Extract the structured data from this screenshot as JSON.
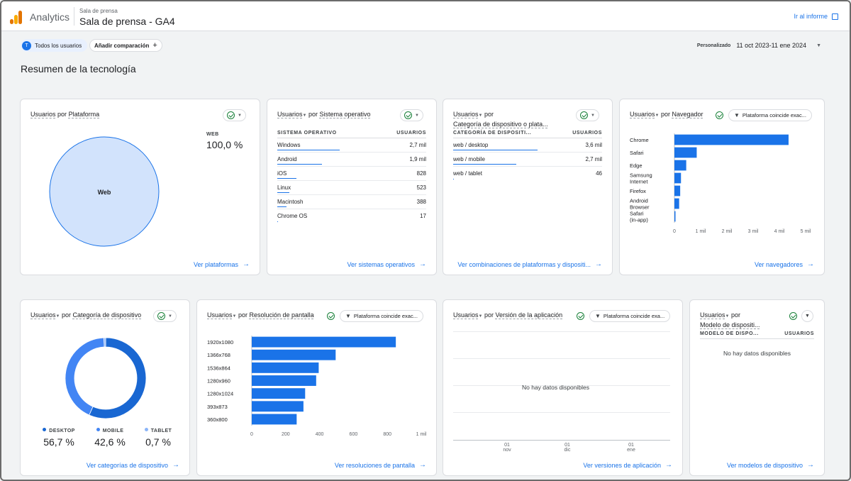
{
  "header": {
    "app_name": "Analytics",
    "property_small": "Sala de prensa",
    "property_name": "Sala de prensa - GA4",
    "go_report": "Ir al informe"
  },
  "filters": {
    "segment_avatar": "T",
    "segment_label": "Todos los usuarios",
    "compare_label": "Añadir comparación",
    "date_prefix": "Personalizado",
    "date_range": "11 oct 2023-11 ene 2024"
  },
  "page_title": "Resumen de la tecnología",
  "colors": {
    "accent": "#1a73e8",
    "pie_fill": "#d2e3fc",
    "donut_desktop": "#1967d2",
    "donut_mobile": "#4285f4",
    "donut_tablet": "#8ab4f8"
  },
  "cards": {
    "platform": {
      "title_a": "Usuarios",
      "title_por": "por",
      "title_b": "Plataforma",
      "legend_label": "WEB",
      "legend_value": "100,0 %",
      "link": "Ver plataformas"
    },
    "os": {
      "title_a": "Usuarios",
      "title_por": "por",
      "title_b": "Sistema operativo",
      "col1": "SISTEMA OPERATIVO",
      "col2": "USUARIOS",
      "rows": [
        {
          "name": "Windows",
          "value": "2,7 mil"
        },
        {
          "name": "Android",
          "value": "1,9 mil"
        },
        {
          "name": "iOS",
          "value": "828"
        },
        {
          "name": "Linux",
          "value": "523"
        },
        {
          "name": "Macintosh",
          "value": "388"
        },
        {
          "name": "Chrome OS",
          "value": "17"
        }
      ],
      "link": "Ver sistemas operativos"
    },
    "devicecat_platform": {
      "title_a": "Usuarios",
      "title_por": "por",
      "title_b": "Categoría de dispositivo o plata...",
      "col1": "CATEGORÍA DE DISPOSITI...",
      "col2": "USUARIOS",
      "rows": [
        {
          "name": "web / desktop",
          "value": "3,6 mil"
        },
        {
          "name": "web / mobile",
          "value": "2,7 mil"
        },
        {
          "name": "web / tablet",
          "value": "46"
        }
      ],
      "link": "Ver combinaciones de plataformas y dispositi..."
    },
    "browser": {
      "title_a": "Usuarios",
      "title_por": "por",
      "title_b": "Navegador",
      "filter": "Plataforma coincide exac...",
      "link": "Ver navegadores"
    },
    "devicecat": {
      "title_a": "Usuarios",
      "title_por": "por",
      "title_b": "Categoría de dispositivo",
      "legend": [
        {
          "label": "DESKTOP",
          "value": "56,7 %"
        },
        {
          "label": "MOBILE",
          "value": "42,6 %"
        },
        {
          "label": "TABLET",
          "value": "0,7 %"
        }
      ],
      "link": "Ver categorías de dispositivo"
    },
    "resolution": {
      "title_a": "Usuarios",
      "title_por": "por",
      "title_b": "Resolución de pantalla",
      "filter": "Plataforma coincide exac...",
      "link": "Ver resoluciones de pantalla"
    },
    "appversion": {
      "title_a": "Usuarios",
      "title_por": "por",
      "title_b": "Versión de la aplicación",
      "filter": "Plataforma coincide exa...",
      "nodata": "No hay datos disponibles",
      "xticks": [
        {
          "day": "01",
          "month": "nov"
        },
        {
          "day": "01",
          "month": "dic"
        },
        {
          "day": "01",
          "month": "ene"
        }
      ],
      "link": "Ver versiones de aplicación"
    },
    "devicemodel": {
      "title_a": "Usuarios",
      "title_por": "por",
      "title_b": "Modelo de dispositi...",
      "col1": "MODELO DE DISPO...",
      "col2": "USUARIOS",
      "nodata": "No hay datos disponibles",
      "link": "Ver modelos de dispositivo"
    }
  },
  "chart_data": [
    {
      "type": "pie",
      "categories": [
        "Web"
      ],
      "values": [
        100.0
      ]
    },
    {
      "type": "pie",
      "categories": [
        "DESKTOP",
        "MOBILE",
        "TABLET"
      ],
      "values": [
        56.7,
        42.6,
        0.7
      ]
    },
    {
      "type": "bar",
      "orientation": "horizontal",
      "categories": [
        "Chrome",
        "Safari",
        "Edge",
        "Samsung Internet",
        "Firefox",
        "Android Browser",
        "Safari (in-app)"
      ],
      "values": [
        4350,
        850,
        450,
        250,
        220,
        180,
        40
      ],
      "xticks": [
        "0",
        "1 mil",
        "2 mil",
        "3 mil",
        "4 mil",
        "5 mil"
      ],
      "xlim": [
        0,
        5000
      ]
    },
    {
      "type": "bar",
      "orientation": "horizontal",
      "categories": [
        "1920x1080",
        "1366x768",
        "1536x864",
        "1280x960",
        "1280x1024",
        "393x873",
        "360x800"
      ],
      "values": [
        850,
        495,
        395,
        380,
        315,
        305,
        265
      ],
      "xticks": [
        "0",
        "200",
        "400",
        "600",
        "800",
        "1 mil"
      ],
      "xlim": [
        0,
        1000
      ]
    }
  ]
}
